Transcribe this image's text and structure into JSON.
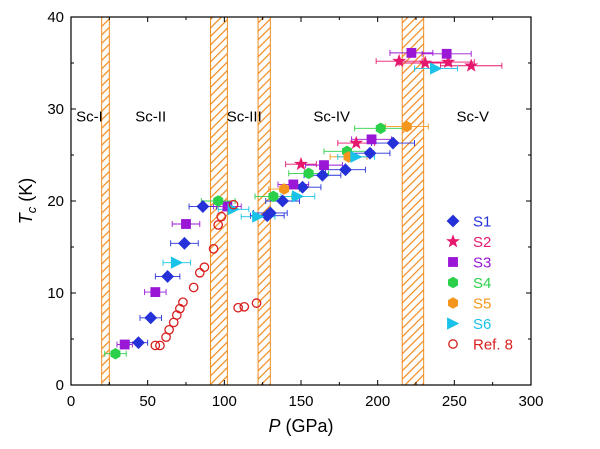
{
  "chart_data": {
    "type": "scatter",
    "xlabel_var": "P",
    "xlabel_unit": " (GPa)",
    "ylabel_var": "T",
    "ylabel_sub": "c",
    "ylabel_unit": " (K)",
    "xlim": [
      0,
      300
    ],
    "ylim": [
      0,
      40
    ],
    "xticks": [
      0,
      50,
      100,
      150,
      200,
      250,
      300
    ],
    "yticks": [
      0,
      10,
      20,
      30,
      40
    ],
    "grid": false,
    "legend_position": "right",
    "phase_boundaries": [
      [
        20,
        25
      ],
      [
        91,
        102
      ],
      [
        122,
        130
      ],
      [
        216,
        230
      ]
    ],
    "phase_labels": [
      {
        "text": "Sc-I",
        "x": 12,
        "y": 29.2
      },
      {
        "text": "Sc-II",
        "x": 52,
        "y": 29.2
      },
      {
        "text": "Sc-III",
        "x": 113,
        "y": 29.2
      },
      {
        "text": "Sc-IV",
        "x": 170,
        "y": 29.2
      },
      {
        "text": "Sc-V",
        "x": 262,
        "y": 29.2
      }
    ],
    "series": [
      {
        "name": "S1",
        "marker": "diamond",
        "color": "#2431d8",
        "filled": true,
        "points": [
          {
            "x": 44,
            "y": 4.6,
            "xerr": 6
          },
          {
            "x": 52,
            "y": 7.3,
            "xerr": 7
          },
          {
            "x": 63,
            "y": 11.8,
            "xerr": 8
          },
          {
            "x": 74,
            "y": 15.4,
            "xerr": 9
          },
          {
            "x": 86,
            "y": 19.4,
            "xerr": 9
          },
          {
            "x": 128,
            "y": 18.4,
            "xerr": 11
          },
          {
            "x": 130,
            "y": 18.7,
            "xerr": 11
          },
          {
            "x": 138,
            "y": 20.0,
            "xerr": 11
          },
          {
            "x": 151,
            "y": 21.5,
            "xerr": 12
          },
          {
            "x": 164,
            "y": 22.8,
            "xerr": 12
          },
          {
            "x": 179,
            "y": 23.4,
            "xerr": 13
          },
          {
            "x": 195,
            "y": 25.2,
            "xerr": 13
          },
          {
            "x": 210,
            "y": 26.3,
            "xerr": 14
          }
        ]
      },
      {
        "name": "S2",
        "marker": "star",
        "color": "#e6186e",
        "filled": true,
        "points": [
          {
            "x": 150,
            "y": 24.0,
            "xerr": 10
          },
          {
            "x": 186,
            "y": 26.3,
            "xerr": 12
          },
          {
            "x": 214,
            "y": 35.2,
            "xerr": 15
          },
          {
            "x": 231,
            "y": 35.0,
            "xerr": 17
          },
          {
            "x": 246,
            "y": 35.1,
            "xerr": 17
          },
          {
            "x": 261,
            "y": 34.7,
            "xerr": 20
          }
        ]
      },
      {
        "name": "S3",
        "marker": "square",
        "color": "#9a17d6",
        "filled": true,
        "points": [
          {
            "x": 35,
            "y": 4.4,
            "xerr": 5
          },
          {
            "x": 55,
            "y": 10.1,
            "xerr": 7
          },
          {
            "x": 75,
            "y": 17.5,
            "xerr": 9
          },
          {
            "x": 102,
            "y": 19.4,
            "xerr": 9
          },
          {
            "x": 145,
            "y": 21.8,
            "xerr": 10
          },
          {
            "x": 165,
            "y": 23.9,
            "xerr": 12
          },
          {
            "x": 196,
            "y": 26.7,
            "xerr": 13
          },
          {
            "x": 222,
            "y": 36.1,
            "xerr": 14
          },
          {
            "x": 245,
            "y": 36.0,
            "xerr": 16
          }
        ]
      },
      {
        "name": "S4",
        "marker": "hexagon",
        "color": "#2bd04a",
        "filled": true,
        "points": [
          {
            "x": 29,
            "y": 3.4,
            "xerr": 7
          },
          {
            "x": 96,
            "y": 20.0,
            "xerr": 11
          },
          {
            "x": 132,
            "y": 20.5,
            "xerr": 12
          },
          {
            "x": 155,
            "y": 23.0,
            "xerr": 13
          },
          {
            "x": 180,
            "y": 25.4,
            "xerr": 15
          },
          {
            "x": 202,
            "y": 27.9,
            "xerr": 17
          }
        ]
      },
      {
        "name": "S5",
        "marker": "hexagon",
        "color": "#f4961e",
        "filled": true,
        "points": [
          {
            "x": 139,
            "y": 21.3,
            "xerr": 10
          },
          {
            "x": 181,
            "y": 24.8,
            "xerr": 12
          },
          {
            "x": 219,
            "y": 28.1,
            "xerr": 14
          }
        ]
      },
      {
        "name": "S6",
        "marker": "triangle-right",
        "color": "#18c2e8",
        "filled": true,
        "points": [
          {
            "x": 69,
            "y": 13.3,
            "xerr": 9
          },
          {
            "x": 106,
            "y": 19.1,
            "xerr": 10
          },
          {
            "x": 122,
            "y": 18.3,
            "xerr": 11
          },
          {
            "x": 148,
            "y": 20.5,
            "xerr": 11
          },
          {
            "x": 186,
            "y": 24.8,
            "xerr": 12
          },
          {
            "x": 238,
            "y": 34.4,
            "xerr": 14
          }
        ]
      },
      {
        "name": "Ref. 8",
        "marker": "circle",
        "color": "#d81e1e",
        "filled": false,
        "points": [
          {
            "x": 55,
            "y": 4.3
          },
          {
            "x": 58,
            "y": 4.3
          },
          {
            "x": 62,
            "y": 5.2
          },
          {
            "x": 64,
            "y": 6.0
          },
          {
            "x": 67,
            "y": 6.8
          },
          {
            "x": 69,
            "y": 7.6
          },
          {
            "x": 71,
            "y": 8.3
          },
          {
            "x": 73,
            "y": 9.0
          },
          {
            "x": 80,
            "y": 10.6
          },
          {
            "x": 84,
            "y": 12.2
          },
          {
            "x": 87,
            "y": 12.8
          },
          {
            "x": 93,
            "y": 14.8
          },
          {
            "x": 96,
            "y": 17.4
          },
          {
            "x": 98,
            "y": 18.3
          },
          {
            "x": 106,
            "y": 19.6
          },
          {
            "x": 109,
            "y": 8.4
          },
          {
            "x": 113,
            "y": 8.5
          },
          {
            "x": 121,
            "y": 8.9
          }
        ]
      }
    ]
  }
}
